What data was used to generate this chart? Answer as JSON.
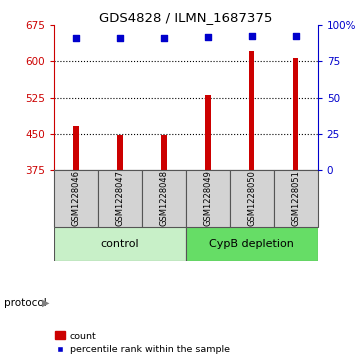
{
  "title": "GDS4828 / ILMN_1687375",
  "samples": [
    "GSM1228046",
    "GSM1228047",
    "GSM1228048",
    "GSM1228049",
    "GSM1228050",
    "GSM1228051"
  ],
  "counts": [
    465,
    447,
    446,
    530,
    621,
    608
  ],
  "percentiles": [
    91,
    91,
    91,
    92,
    93,
    93
  ],
  "left_ylim": [
    375,
    675
  ],
  "left_yticks": [
    375,
    450,
    525,
    600,
    675
  ],
  "right_ylim": [
    0,
    100
  ],
  "right_yticks": [
    0,
    25,
    50,
    75,
    100
  ],
  "bar_color": "#cc0000",
  "dot_color": "#0000cc",
  "grid_dotted_ticks": [
    450,
    525,
    600
  ],
  "protocol_labels": [
    "control",
    "CypB depletion"
  ],
  "control_color": "#c8f0c8",
  "cypb_color": "#66dd66",
  "sample_box_color": "#d3d3d3",
  "sample_box_edge": "#555555",
  "left_axis_color": "#cc0000",
  "right_axis_color": "#0000cc",
  "bar_width": 0.12,
  "legend_count_color": "#cc0000",
  "legend_perc_color": "#0000cc"
}
